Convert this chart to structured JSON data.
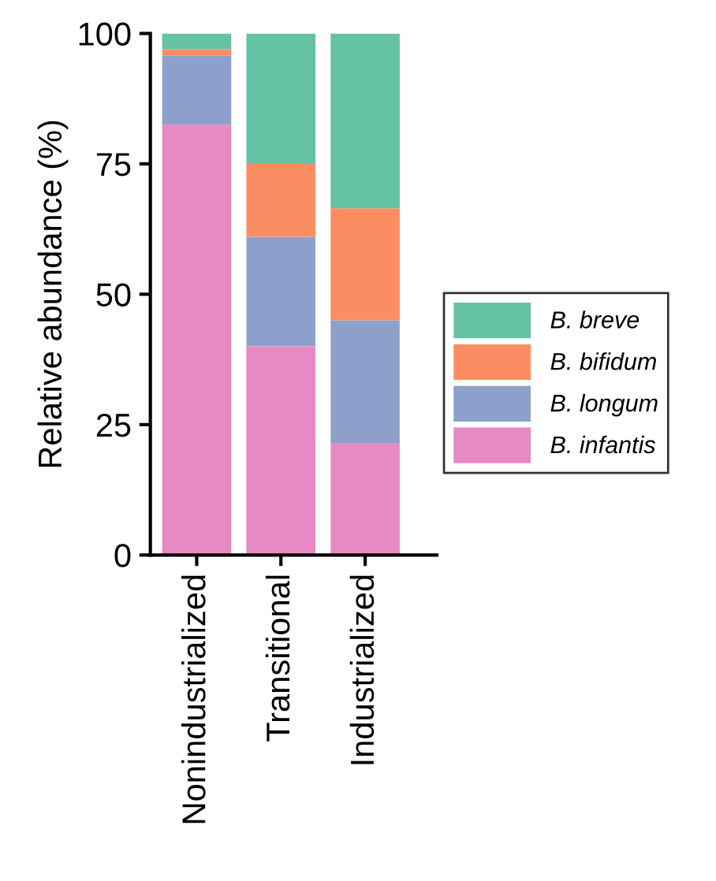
{
  "chart_data": {
    "type": "bar",
    "stacked": true,
    "ylabel": "Relative abundance (%)",
    "categories": [
      "Nonindustrialized",
      "Transitional",
      "Industrialized"
    ],
    "series": [
      {
        "name": "B. infantis",
        "color": "#e78ac3",
        "values": [
          82.5,
          40,
          21.5
        ]
      },
      {
        "name": "B. longum",
        "color": "#8da0cb",
        "values": [
          13.3,
          21,
          23.5
        ]
      },
      {
        "name": "B. bifidum",
        "color": "#fc8d62",
        "values": [
          1.2,
          14,
          21.5
        ]
      },
      {
        "name": "B. breve",
        "color": "#66c2a5",
        "values": [
          3,
          25,
          33.5
        ]
      }
    ],
    "ylim": [
      0,
      100
    ],
    "yticks": [
      0,
      25,
      50,
      75,
      100
    ],
    "grid": false,
    "legend": "right"
  }
}
